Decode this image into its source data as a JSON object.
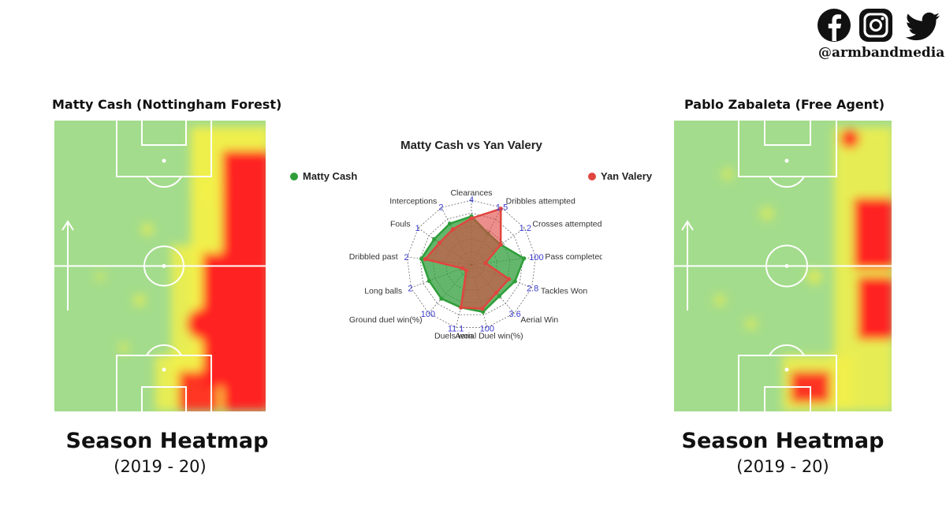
{
  "social": {
    "icons": [
      "facebook-icon",
      "instagram-icon",
      "twitter-icon"
    ],
    "handle": "@armbandmedia"
  },
  "left_player": {
    "title": "Matty Cash (Nottingham Forest)",
    "heatmap_title": "Season Heatmap",
    "season": "(2019 - 20)"
  },
  "right_player": {
    "title": "Pablo Zabaleta (Free Agent)",
    "heatmap_title": "Season Heatmap",
    "season": "(2019 - 20)"
  },
  "colors": {
    "pitch": "#a3dc8c",
    "heat_low": "#f2f04a",
    "heat_high": "#ff2020",
    "series_a": "#2f9e3a",
    "series_b": "#e0453f",
    "axis_value": "#3a3ad0"
  },
  "chart_data": {
    "type": "radar",
    "title": "Matty Cash vs Yan Valery",
    "legend": [
      "Matty Cash",
      "Yan Valery"
    ],
    "axes": [
      {
        "label": "Clearances",
        "max": "4"
      },
      {
        "label": "Dribbles attempted",
        "max": "1.5"
      },
      {
        "label": "Crosses attempted",
        "max": "1.2"
      },
      {
        "label": "Pass completed(%)",
        "max": "100"
      },
      {
        "label": "Tackles Won",
        "max": "2.8"
      },
      {
        "label": "Aerial Win",
        "max": "3.6"
      },
      {
        "label": "Aerial Duel win(%)",
        "max": "100"
      },
      {
        "label": "Duels won",
        "max": "11.1"
      },
      {
        "label": "Ground duel win(%)",
        "max": "100"
      },
      {
        "label": "Long balls",
        "max": "2"
      },
      {
        "label": "Dribbled past",
        "max": "2"
      },
      {
        "label": "Fouls",
        "max": "1"
      },
      {
        "label": "Interceptions",
        "max": "2"
      }
    ],
    "series": [
      {
        "name": "Matty Cash",
        "values": [
          0.75,
          0.55,
          0.55,
          0.82,
          0.72,
          0.65,
          0.75,
          0.68,
          0.7,
          0.7,
          0.78,
          0.7,
          0.72
        ]
      },
      {
        "name": "Yan Valery",
        "values": [
          0.72,
          0.98,
          0.55,
          0.22,
          0.62,
          0.58,
          0.7,
          0.68,
          0.12,
          0.15,
          0.72,
          0.6,
          0.62
        ]
      }
    ],
    "grid_levels": 5,
    "legend_position": "top"
  }
}
